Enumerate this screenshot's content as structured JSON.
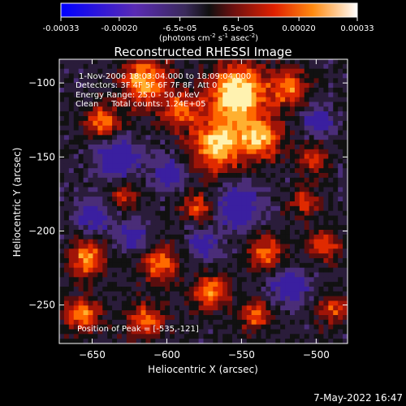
{
  "chart_data": {
    "type": "heatmap",
    "title": "Reconstructed RHESSI Image",
    "xlabel": "Heliocentric X (arcsec)",
    "ylabel": "Heliocentric Y (arcsec)",
    "xlim": [
      -672,
      -479
    ],
    "ylim": [
      -276,
      -84
    ],
    "x_ticks": [
      -650,
      -600,
      -550,
      -500
    ],
    "y_ticks": [
      -100,
      -150,
      -200,
      -250
    ],
    "colorbar": {
      "min": -0.00033,
      "max": 0.00033,
      "tick_labels": [
        "-0.00033",
        "-0.00020",
        "-6.5e-05",
        "6.5e-05",
        "0.00020",
        "0.00033"
      ],
      "tick_values": [
        -0.00033,
        -0.0002,
        -6.5e-05,
        6.5e-05,
        0.0002,
        0.00033
      ],
      "unit_label": "(photons cm",
      "unit_exp1": "-2",
      "unit_mid": " s",
      "unit_exp2": "-1",
      "unit_end": " asec",
      "unit_exp3": "-2",
      "unit_close": ")"
    },
    "annotations": [
      "1-Nov-2006 18:03:04.000 to 18:09:04.000",
      "Detectors: 3F 4F 5F 6F 7F 8F, Att 0",
      "Energy Range: 25.0 - 50.0 keV",
      "Clean     Total counts: 1.24E+05",
      "Position of Peak = [-535,-121]"
    ],
    "peak": [
      -535,
      -121
    ],
    "grid": false,
    "colors": {
      "background": "#000000",
      "axes": "#ffffff",
      "text": "#ffffff"
    }
  },
  "footer": {
    "timestamp": "7-May-2022 16:47"
  }
}
